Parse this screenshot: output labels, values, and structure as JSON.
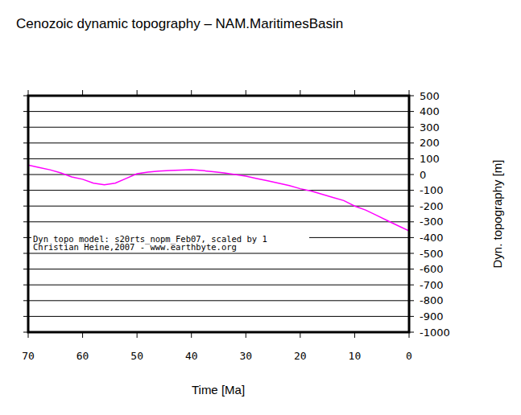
{
  "chart_data": {
    "type": "line",
    "title": "Cenozoic dynamic topography – NAM.MaritimesBasin",
    "x_label": "Time [Ma]",
    "y_label": "Dyn. topography [m]",
    "annotations": [
      "Dyn topo model: s20rts_nopm_Feb07, scaled by 1",
      "Christian Heine,2007 - www.earthbyte.org"
    ],
    "x": [
      70,
      68,
      66,
      64,
      62,
      60,
      58,
      56,
      54,
      52,
      50,
      48,
      46,
      44,
      42,
      40,
      38,
      36,
      34,
      32,
      30,
      28,
      26,
      24,
      22,
      20,
      18,
      16,
      14,
      12,
      10,
      8,
      6,
      4,
      2,
      0
    ],
    "values": [
      60,
      45,
      30,
      10,
      -15,
      -30,
      -55,
      -65,
      -55,
      -25,
      5,
      15,
      22,
      25,
      28,
      30,
      25,
      18,
      10,
      0,
      -10,
      -25,
      -40,
      -55,
      -70,
      -90,
      -105,
      -125,
      -145,
      -165,
      -200,
      -225,
      -258,
      -292,
      -325,
      -357
    ],
    "color": "#ff00ff",
    "xlim": [
      70,
      0
    ],
    "xticks": [
      70,
      60,
      50,
      40,
      30,
      20,
      10,
      0
    ],
    "ylim": [
      -1000,
      500
    ],
    "yticks": [
      500,
      400,
      300,
      200,
      100,
      0,
      -100,
      -200,
      -300,
      -400,
      -500,
      -600,
      -700,
      -800,
      -900,
      -1000
    ],
    "grid": true
  }
}
